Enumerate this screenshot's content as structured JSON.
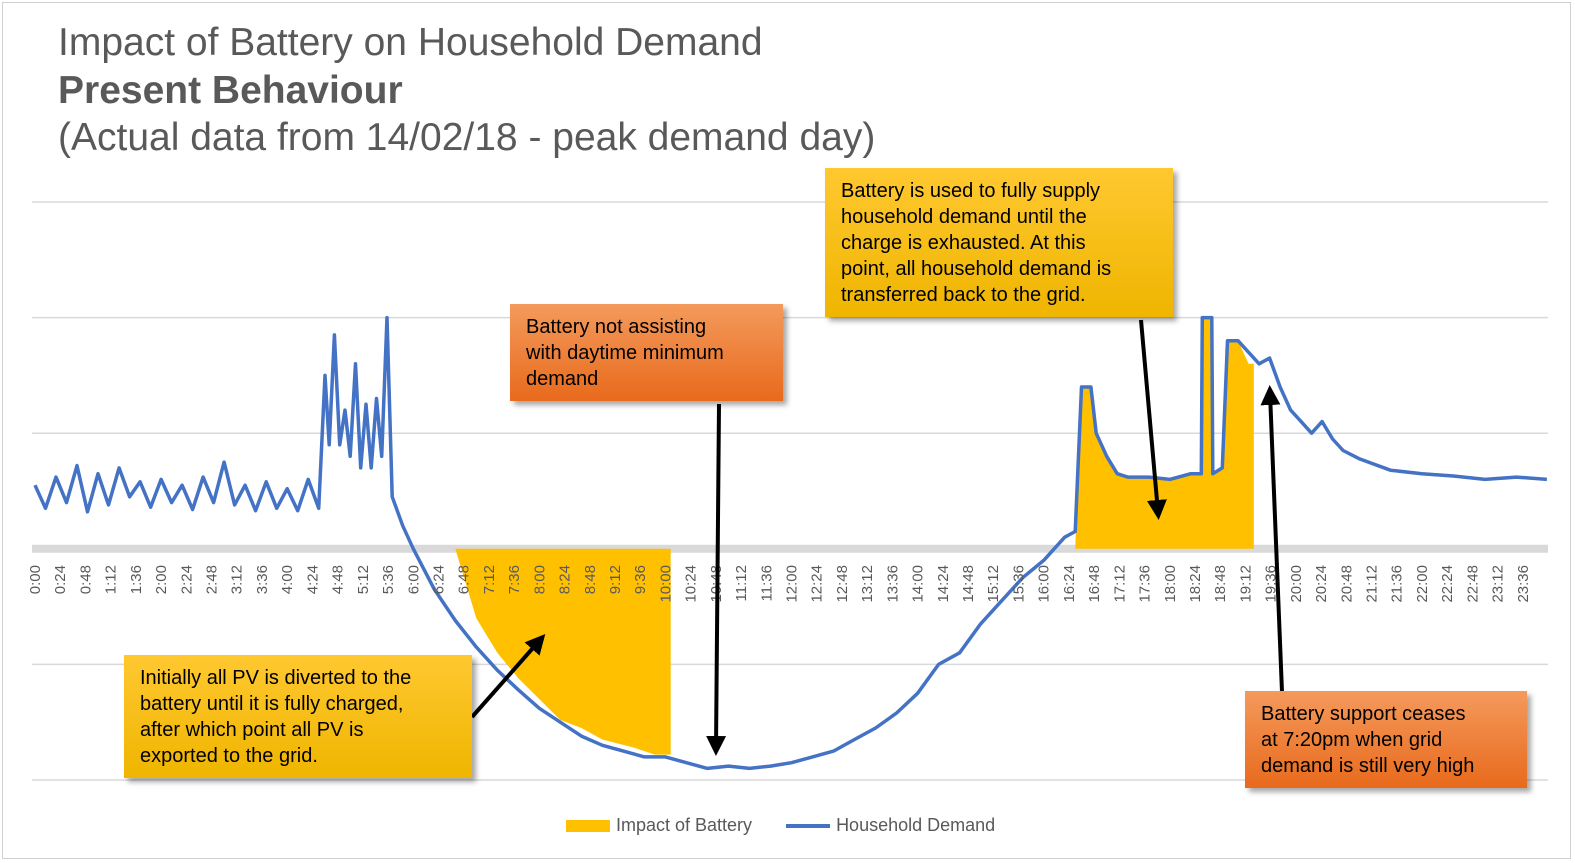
{
  "header": {
    "title": "Impact of Battery on Household Demand",
    "subtitle": "Present Behaviour",
    "note": "(Actual data from 14/02/18 - peak demand  day)"
  },
  "chart_data": {
    "type": "area",
    "x_unit": "time of day",
    "x_tick_labels": [
      "0:00",
      "0:24",
      "0:48",
      "1:12",
      "1:36",
      "2:00",
      "2:24",
      "2:48",
      "3:12",
      "3:36",
      "4:00",
      "4:24",
      "4:48",
      "5:12",
      "5:36",
      "6:00",
      "6:24",
      "6:48",
      "7:12",
      "7:36",
      "8:00",
      "8:24",
      "8:48",
      "9:12",
      "9:36",
      "10:00",
      "10:24",
      "10:48",
      "11:12",
      "11:36",
      "12:00",
      "12:24",
      "12:48",
      "13:12",
      "13:36",
      "14:00",
      "14:24",
      "14:48",
      "15:12",
      "15:36",
      "16:00",
      "16:24",
      "16:48",
      "17:12",
      "17:36",
      "18:00",
      "18:24",
      "18:48",
      "19:12",
      "19:36",
      "20:00",
      "20:24",
      "20:48",
      "21:12",
      "21:36",
      "22:00",
      "22:24",
      "22:48",
      "23:12",
      "23:36"
    ],
    "ylim": [
      -2,
      3
    ],
    "y_gridlines": [
      -2,
      -1,
      0,
      1,
      2,
      3
    ],
    "y_ticks_labeled": false,
    "grid": true,
    "legend_position": "bottom",
    "series": [
      {
        "name": "Household Demand",
        "kind": "line",
        "color": "#4472c4",
        "points": [
          [
            "0:00",
            0.55
          ],
          [
            "0:10",
            0.35
          ],
          [
            "0:20",
            0.62
          ],
          [
            "0:30",
            0.4
          ],
          [
            "0:40",
            0.72
          ],
          [
            "0:50",
            0.32
          ],
          [
            "1:00",
            0.65
          ],
          [
            "1:10",
            0.38
          ],
          [
            "1:20",
            0.7
          ],
          [
            "1:30",
            0.45
          ],
          [
            "1:40",
            0.58
          ],
          [
            "1:50",
            0.36
          ],
          [
            "2:00",
            0.6
          ],
          [
            "2:10",
            0.4
          ],
          [
            "2:20",
            0.55
          ],
          [
            "2:30",
            0.34
          ],
          [
            "2:40",
            0.62
          ],
          [
            "2:50",
            0.4
          ],
          [
            "3:00",
            0.75
          ],
          [
            "3:10",
            0.38
          ],
          [
            "3:20",
            0.55
          ],
          [
            "3:30",
            0.33
          ],
          [
            "3:40",
            0.58
          ],
          [
            "3:50",
            0.35
          ],
          [
            "4:00",
            0.52
          ],
          [
            "4:10",
            0.33
          ],
          [
            "4:20",
            0.6
          ],
          [
            "4:30",
            0.35
          ],
          [
            "4:36",
            1.5
          ],
          [
            "4:40",
            0.9
          ],
          [
            "4:45",
            1.85
          ],
          [
            "4:50",
            0.9
          ],
          [
            "4:55",
            1.2
          ],
          [
            "5:00",
            0.8
          ],
          [
            "5:05",
            1.6
          ],
          [
            "5:10",
            0.7
          ],
          [
            "5:15",
            1.25
          ],
          [
            "5:20",
            0.7
          ],
          [
            "5:25",
            1.3
          ],
          [
            "5:30",
            0.8
          ],
          [
            "5:35",
            2.0
          ],
          [
            "5:40",
            0.45
          ],
          [
            "5:50",
            0.2
          ],
          [
            "6:00",
            0.0
          ],
          [
            "6:20",
            -0.35
          ],
          [
            "6:40",
            -0.62
          ],
          [
            "7:00",
            -0.85
          ],
          [
            "7:20",
            -1.05
          ],
          [
            "7:40",
            -1.22
          ],
          [
            "8:00",
            -1.38
          ],
          [
            "8:20",
            -1.5
          ],
          [
            "8:40",
            -1.62
          ],
          [
            "9:00",
            -1.7
          ],
          [
            "9:20",
            -1.75
          ],
          [
            "9:40",
            -1.8
          ],
          [
            "10:00",
            -1.8
          ],
          [
            "10:20",
            -1.85
          ],
          [
            "10:40",
            -1.9
          ],
          [
            "11:00",
            -1.88
          ],
          [
            "11:20",
            -1.9
          ],
          [
            "11:40",
            -1.88
          ],
          [
            "12:00",
            -1.85
          ],
          [
            "12:20",
            -1.8
          ],
          [
            "12:40",
            -1.75
          ],
          [
            "13:00",
            -1.65
          ],
          [
            "13:20",
            -1.55
          ],
          [
            "13:40",
            -1.42
          ],
          [
            "14:00",
            -1.25
          ],
          [
            "14:20",
            -1.0
          ],
          [
            "14:40",
            -0.9
          ],
          [
            "15:00",
            -0.65
          ],
          [
            "15:20",
            -0.45
          ],
          [
            "15:40",
            -0.25
          ],
          [
            "16:00",
            -0.1
          ],
          [
            "16:20",
            0.1
          ],
          [
            "16:30",
            0.15
          ],
          [
            "16:36",
            1.4
          ],
          [
            "16:45",
            1.4
          ],
          [
            "16:50",
            1.0
          ],
          [
            "17:00",
            0.8
          ],
          [
            "17:10",
            0.65
          ],
          [
            "17:20",
            0.62
          ],
          [
            "17:40",
            0.62
          ],
          [
            "18:00",
            0.6
          ],
          [
            "18:20",
            0.65
          ],
          [
            "18:30",
            0.65
          ],
          [
            "18:31",
            2.0
          ],
          [
            "18:40",
            2.0
          ],
          [
            "18:41",
            0.65
          ],
          [
            "18:50",
            0.7
          ],
          [
            "18:55",
            1.8
          ],
          [
            "19:05",
            1.8
          ],
          [
            "19:15",
            1.7
          ],
          [
            "19:25",
            1.6
          ],
          [
            "19:35",
            1.65
          ],
          [
            "19:45",
            1.4
          ],
          [
            "19:55",
            1.2
          ],
          [
            "20:05",
            1.1
          ],
          [
            "20:15",
            1.0
          ],
          [
            "20:25",
            1.1
          ],
          [
            "20:35",
            0.95
          ],
          [
            "20:45",
            0.85
          ],
          [
            "21:00",
            0.78
          ],
          [
            "21:30",
            0.68
          ],
          [
            "22:00",
            0.65
          ],
          [
            "22:30",
            0.63
          ],
          [
            "23:00",
            0.6
          ],
          [
            "23:30",
            0.62
          ],
          [
            "23:59",
            0.6
          ]
        ]
      },
      {
        "name": "Impact of Battery",
        "kind": "area",
        "color": "#ffc000",
        "polygons": [
          [
            [
              "6:40",
              0.0
            ],
            [
              "10:05",
              0.0
            ],
            [
              "10:05",
              -1.78
            ],
            [
              "9:50",
              -1.78
            ],
            [
              "9:30",
              -1.72
            ],
            [
              "9:00",
              -1.65
            ],
            [
              "8:40",
              -1.55
            ],
            [
              "8:20",
              -1.48
            ],
            [
              "8:00",
              -1.3
            ],
            [
              "7:40",
              -1.12
            ],
            [
              "7:20",
              -0.9
            ],
            [
              "7:00",
              -0.6
            ]
          ],
          [
            [
              "16:30",
              0.0
            ],
            [
              "16:36",
              1.4
            ],
            [
              "16:45",
              1.4
            ],
            [
              "16:50",
              1.0
            ],
            [
              "17:00",
              0.8
            ],
            [
              "17:10",
              0.65
            ],
            [
              "17:20",
              0.62
            ],
            [
              "17:40",
              0.62
            ],
            [
              "18:00",
              0.6
            ],
            [
              "18:20",
              0.65
            ],
            [
              "18:30",
              0.65
            ],
            [
              "18:31",
              2.0
            ],
            [
              "18:40",
              2.0
            ],
            [
              "18:41",
              0.65
            ],
            [
              "18:50",
              0.7
            ],
            [
              "18:55",
              1.8
            ],
            [
              "19:05",
              1.8
            ],
            [
              "19:15",
              1.6
            ],
            [
              "19:20",
              1.6
            ],
            [
              "19:20",
              0.0
            ]
          ]
        ]
      }
    ],
    "legend": [
      {
        "label": "Impact of Battery",
        "color": "#ffc000",
        "kind": "area"
      },
      {
        "label": "Household Demand",
        "color": "#4472c4",
        "kind": "line"
      }
    ]
  },
  "callouts": {
    "battery_not_assisting": {
      "lines": [
        "Battery not assisting",
        "with daytime minimum",
        "demand"
      ],
      "color": "#ed7d31"
    },
    "battery_used_fully": {
      "lines": [
        "Battery is used to fully supply",
        "household demand until the",
        "charge is exhausted. At this",
        "point, all household demand is",
        "transferred back to the grid."
      ],
      "color": "#ffc000"
    },
    "initially_pv_diverted": {
      "lines": [
        "Initially all PV is diverted to the",
        "battery until it is fully charged,",
        "after which point all PV is",
        "exported to the grid."
      ],
      "color": "#ffc000"
    },
    "battery_support_ceases": {
      "lines": [
        "Battery support ceases",
        "at 7:20pm when grid",
        "demand is still very high"
      ],
      "color": "#ed7d31"
    }
  }
}
